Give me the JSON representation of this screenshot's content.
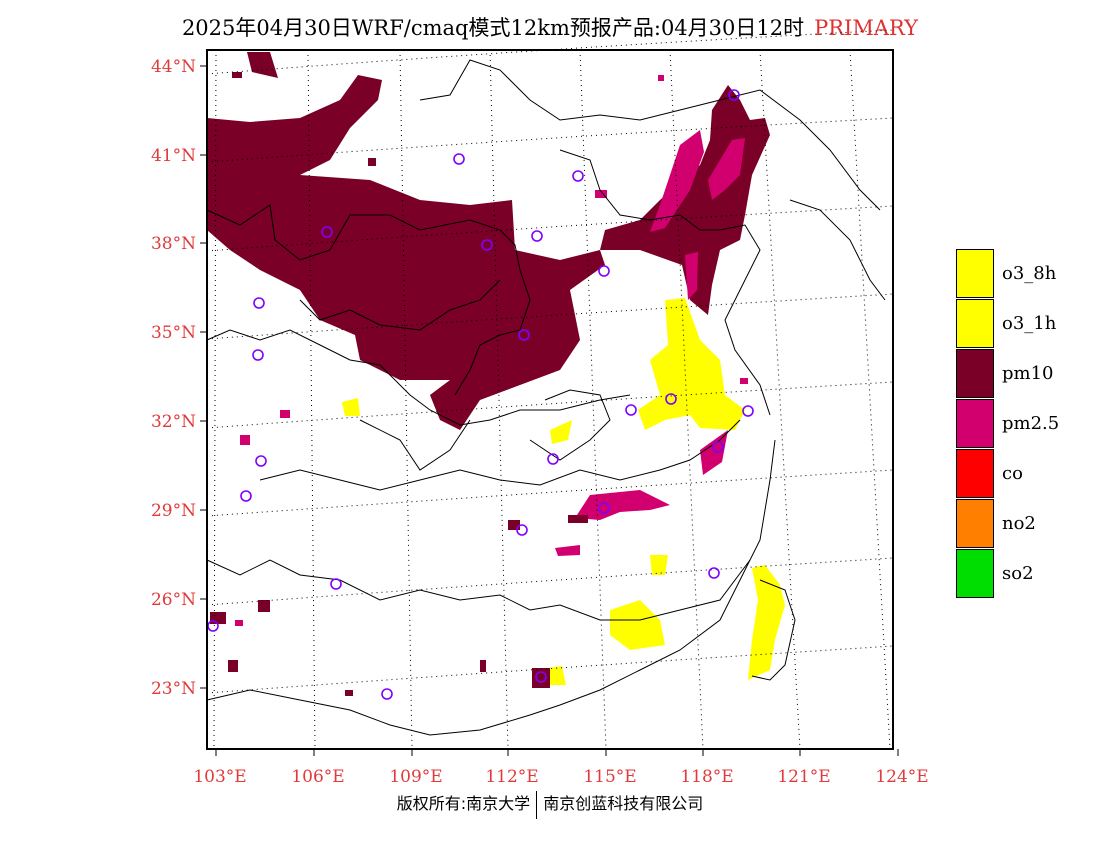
{
  "header": {
    "title": "2025年04月30日WRF/cmaq模式12km预报产品:04月30日12时",
    "primary_label": "PRIMARY"
  },
  "map": {
    "lon_labels": [
      "103°E",
      "106°E",
      "109°E",
      "112°E",
      "115°E",
      "118°E",
      "121°E",
      "124°E"
    ],
    "lat_labels": [
      "44°N",
      "41°N",
      "38°N",
      "35°N",
      "32°N",
      "29°N",
      "26°N",
      "23°N"
    ],
    "lon_range": [
      103,
      124
    ],
    "lat_range": [
      21,
      44.5
    ],
    "label_color": "#e03a3a"
  },
  "legend": {
    "items": [
      {
        "label": "o3_8h",
        "color": "#ffff00"
      },
      {
        "label": "o3_1h",
        "color": "#ffff00"
      },
      {
        "label": "pm10",
        "color": "#7a0028"
      },
      {
        "label": "pm2.5",
        "color": "#d2006e"
      },
      {
        "label": "co",
        "color": "#ff0000"
      },
      {
        "label": "no2",
        "color": "#ff7f00"
      },
      {
        "label": "so2",
        "color": "#00dd00"
      }
    ]
  },
  "footer": {
    "left": "版权所有:南京大学",
    "right": "南京创蓝科技有限公司"
  }
}
